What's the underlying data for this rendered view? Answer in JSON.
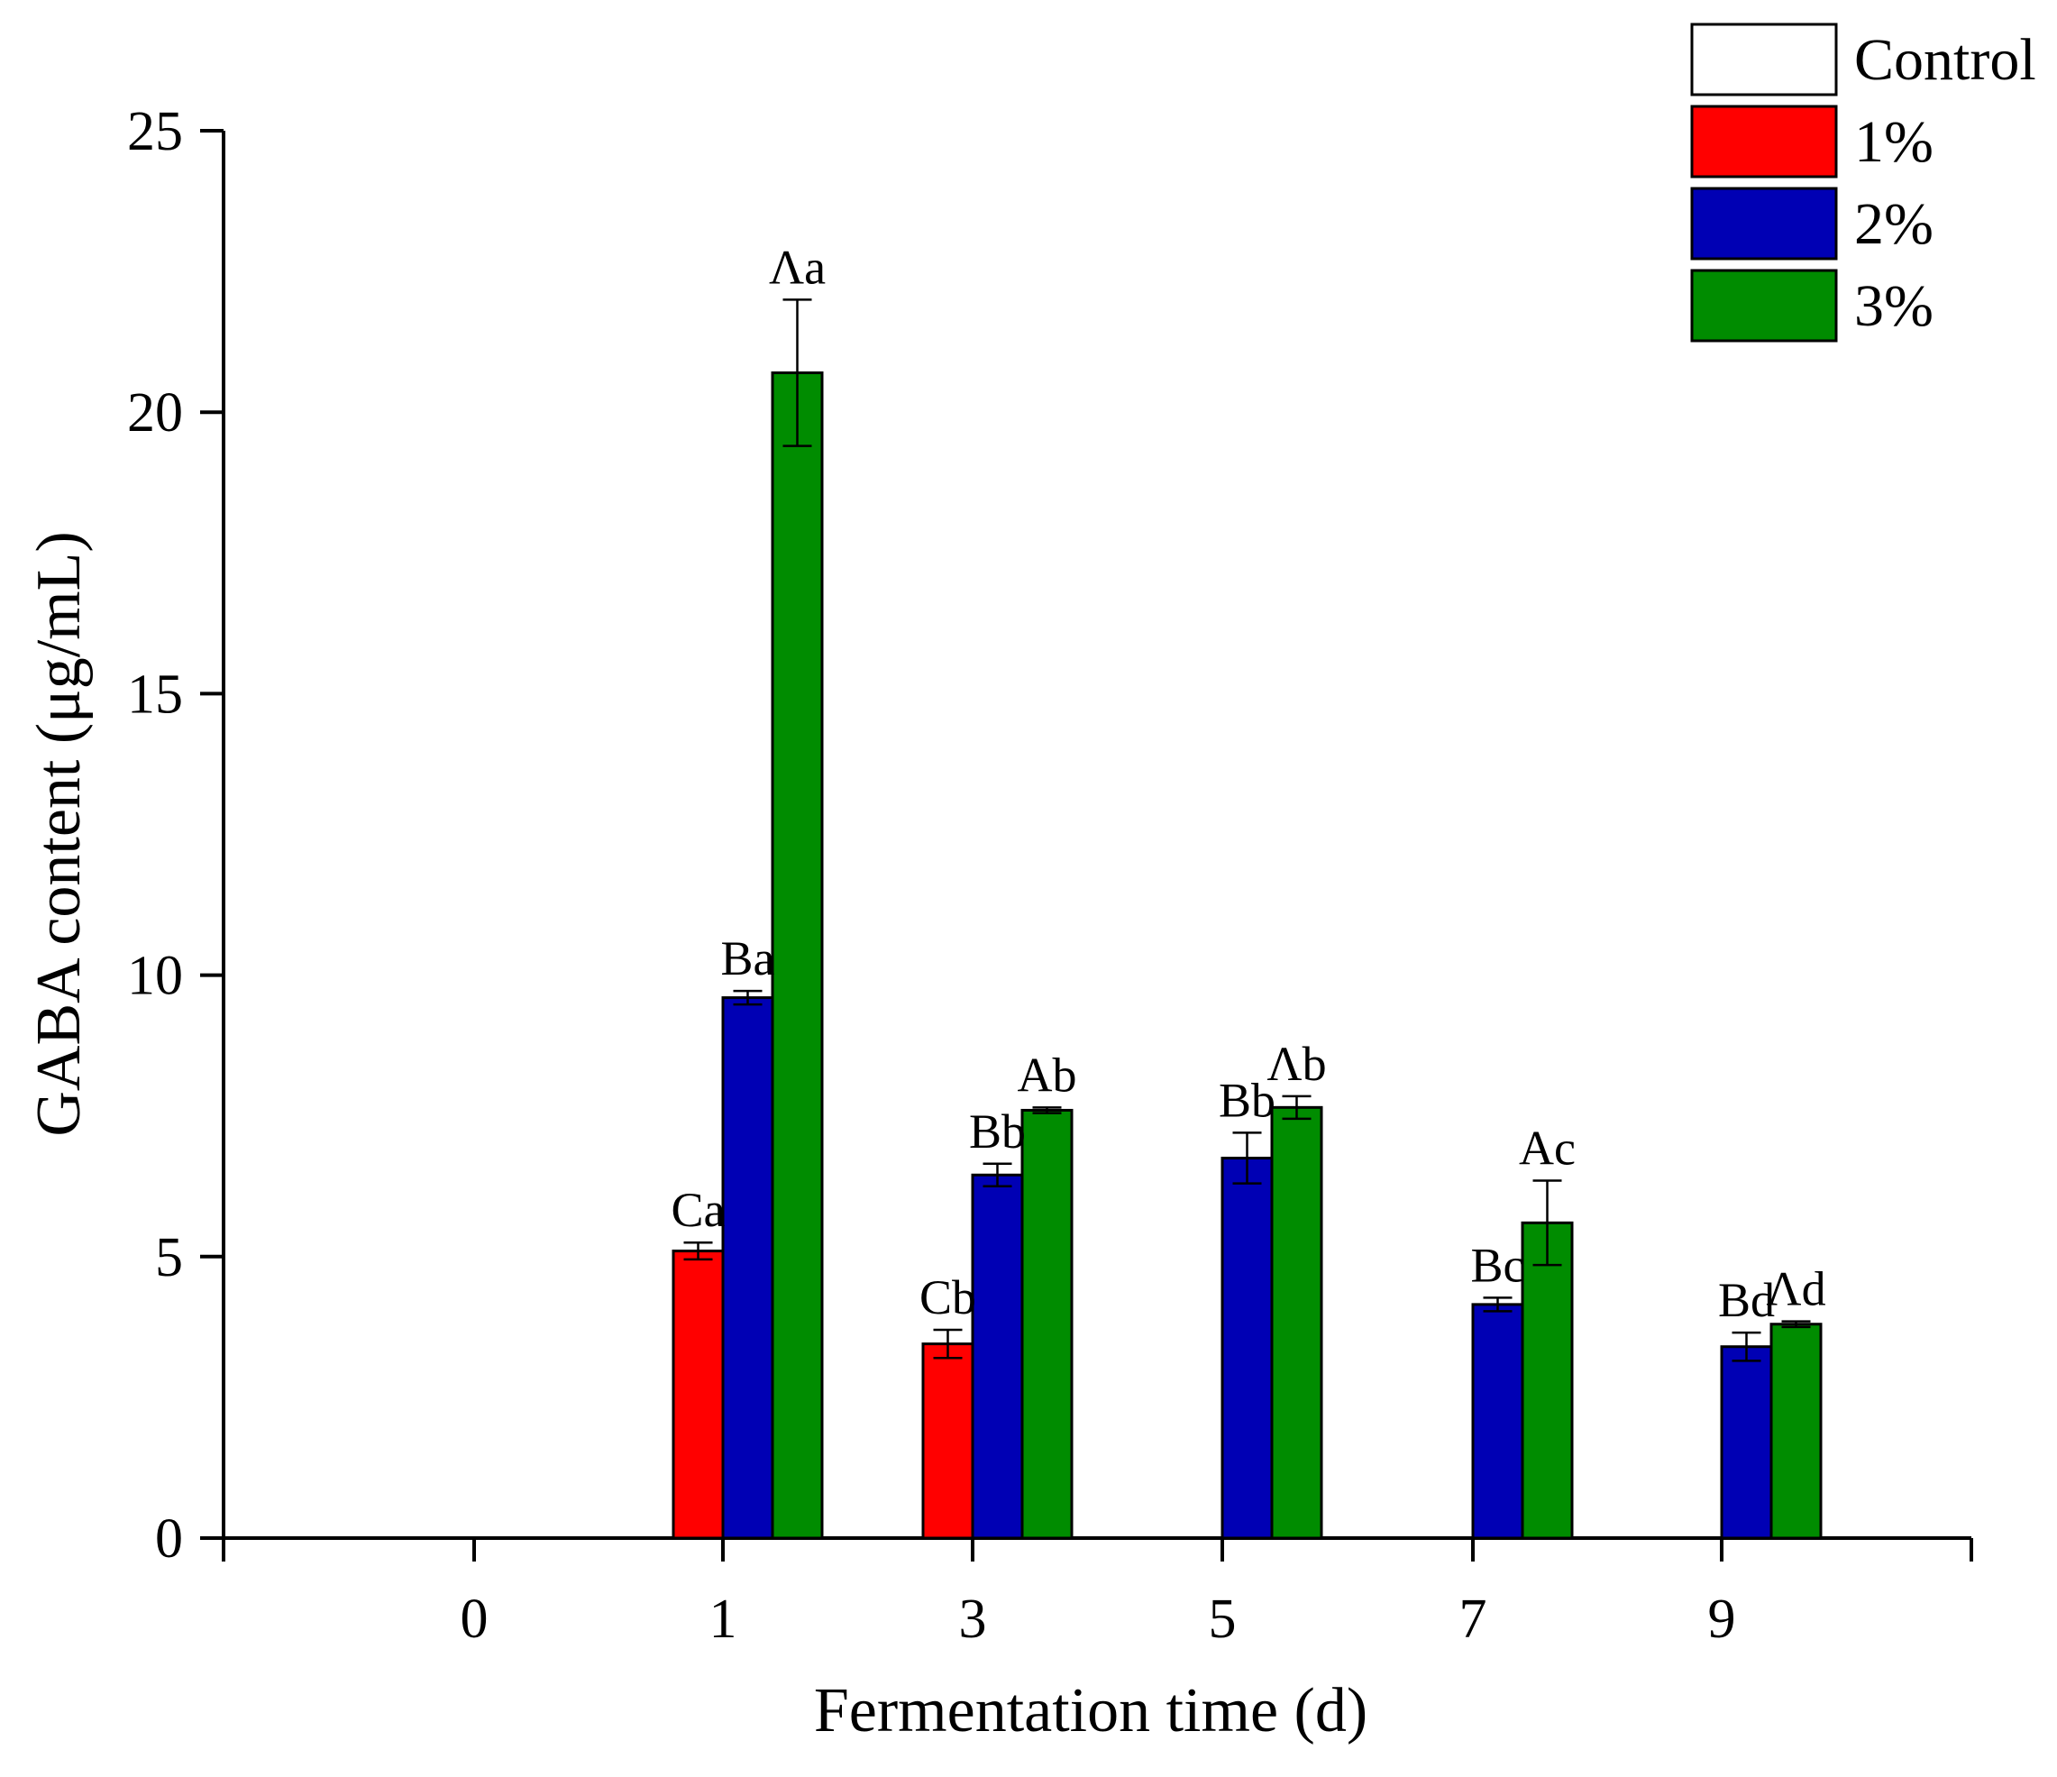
{
  "chart_data": {
    "type": "bar",
    "title": "",
    "xlabel": "Fermentation time (d)",
    "ylabel": "GABA content (μg/mL)",
    "categories": [
      "0",
      "1",
      "3",
      "5",
      "7",
      "9"
    ],
    "ylim": [
      0,
      25
    ],
    "yticks": [
      "0",
      "5",
      "10",
      "15",
      "20",
      "25"
    ],
    "grid": false,
    "legend_position": "top-right",
    "series": [
      {
        "name": "Control",
        "color": "#ffffff",
        "values": [
          0,
          0,
          0,
          0,
          0,
          0
        ],
        "errors": [
          0,
          0,
          0,
          0,
          0,
          0
        ],
        "labels": [
          "",
          "",
          "",
          "",
          "",
          ""
        ]
      },
      {
        "name": "1%",
        "color": "#ff0000",
        "values": [
          0,
          5.1,
          3.45,
          0,
          0,
          0
        ],
        "errors": [
          0,
          0.15,
          0.25,
          0,
          0,
          0
        ],
        "labels": [
          "",
          "Ca",
          "Cb",
          "",
          "",
          ""
        ]
      },
      {
        "name": "2%",
        "color": "#0000b4",
        "values": [
          0,
          9.6,
          6.45,
          6.75,
          4.15,
          3.4
        ],
        "errors": [
          0,
          0.12,
          0.2,
          0.45,
          0.12,
          0.25
        ],
        "labels": [
          "",
          "Ba",
          "Bb",
          "Bb",
          "Bc",
          "Bd"
        ]
      },
      {
        "name": "3%",
        "color": "#008c00",
        "values": [
          0,
          20.7,
          7.6,
          7.65,
          5.6,
          3.8
        ],
        "errors": [
          0,
          1.3,
          0.05,
          0.2,
          0.75,
          0.05
        ],
        "labels": [
          "",
          "Λa",
          "Ab",
          "Λb",
          "Ac",
          "Λd"
        ]
      }
    ]
  }
}
